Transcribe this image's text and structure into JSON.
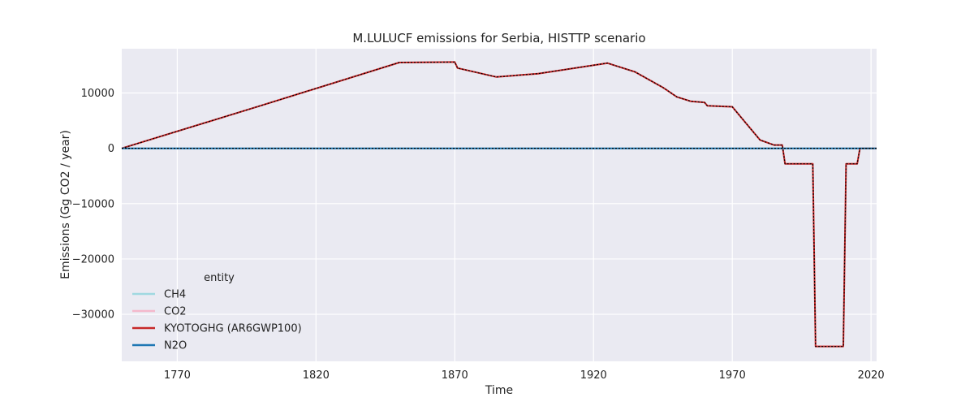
{
  "chart_data": {
    "type": "line",
    "title": "M.LULUCF emissions for Serbia, HISTTP scenario",
    "xlabel": "Time",
    "ylabel": "Emissions (Gg CO2 / year)",
    "xlim": [
      1750,
      2022
    ],
    "ylim": [
      -38500,
      18000
    ],
    "xticks": [
      1770,
      1820,
      1870,
      1920,
      1970,
      2020
    ],
    "yticks": [
      -30000,
      -20000,
      -10000,
      0,
      10000
    ],
    "ytick_labels": [
      "−30000",
      "−20000",
      "−10000",
      "0",
      "10000"
    ],
    "grid": true,
    "legend": {
      "title": "entity",
      "placement": "lower-left"
    },
    "series": [
      {
        "name": "CH4",
        "color": "#9fd8e0",
        "style": "solid",
        "x": [
          1750,
          2022
        ],
        "y": [
          0,
          0
        ]
      },
      {
        "name": "CO2",
        "color": "#f4b8cc",
        "style": "solid",
        "x": [
          1750,
          1800,
          1850,
          1870,
          1871,
          1885,
          1900,
          1925,
          1935,
          1945,
          1950,
          1955,
          1960,
          1961,
          1970,
          1975,
          1980,
          1985,
          1988,
          1989,
          1999,
          2000,
          2010,
          2011,
          2015,
          2016,
          2022
        ],
        "y": [
          0,
          7700,
          15500,
          15600,
          14500,
          12900,
          13500,
          15400,
          13800,
          11000,
          9300,
          8500,
          8300,
          7700,
          7500,
          4500,
          1500,
          600,
          600,
          -2800,
          -2800,
          -35800,
          -35800,
          -2800,
          -2800,
          0,
          0
        ]
      },
      {
        "name": "KYOTOGHG (AR6GWP100)",
        "color": "#c62828",
        "style": "solid",
        "x": [
          1750,
          1800,
          1850,
          1870,
          1871,
          1885,
          1900,
          1925,
          1935,
          1945,
          1950,
          1955,
          1960,
          1961,
          1970,
          1975,
          1980,
          1985,
          1988,
          1989,
          1999,
          2000,
          2010,
          2011,
          2015,
          2016,
          2022
        ],
        "y": [
          0,
          7700,
          15500,
          15600,
          14500,
          12900,
          13500,
          15400,
          13800,
          11000,
          9300,
          8500,
          8300,
          7700,
          7500,
          4500,
          1500,
          600,
          600,
          -2800,
          -2800,
          -35800,
          -35800,
          -2800,
          -2800,
          0,
          0
        ]
      },
      {
        "name": "N2O",
        "color": "#1f77b4",
        "style": "solid",
        "x": [
          1750,
          2022
        ],
        "y": [
          0,
          0
        ]
      }
    ],
    "overlay": {
      "color": "#000000",
      "style": "dotted",
      "follows": "KYOTOGHG (AR6GWP100)"
    }
  }
}
